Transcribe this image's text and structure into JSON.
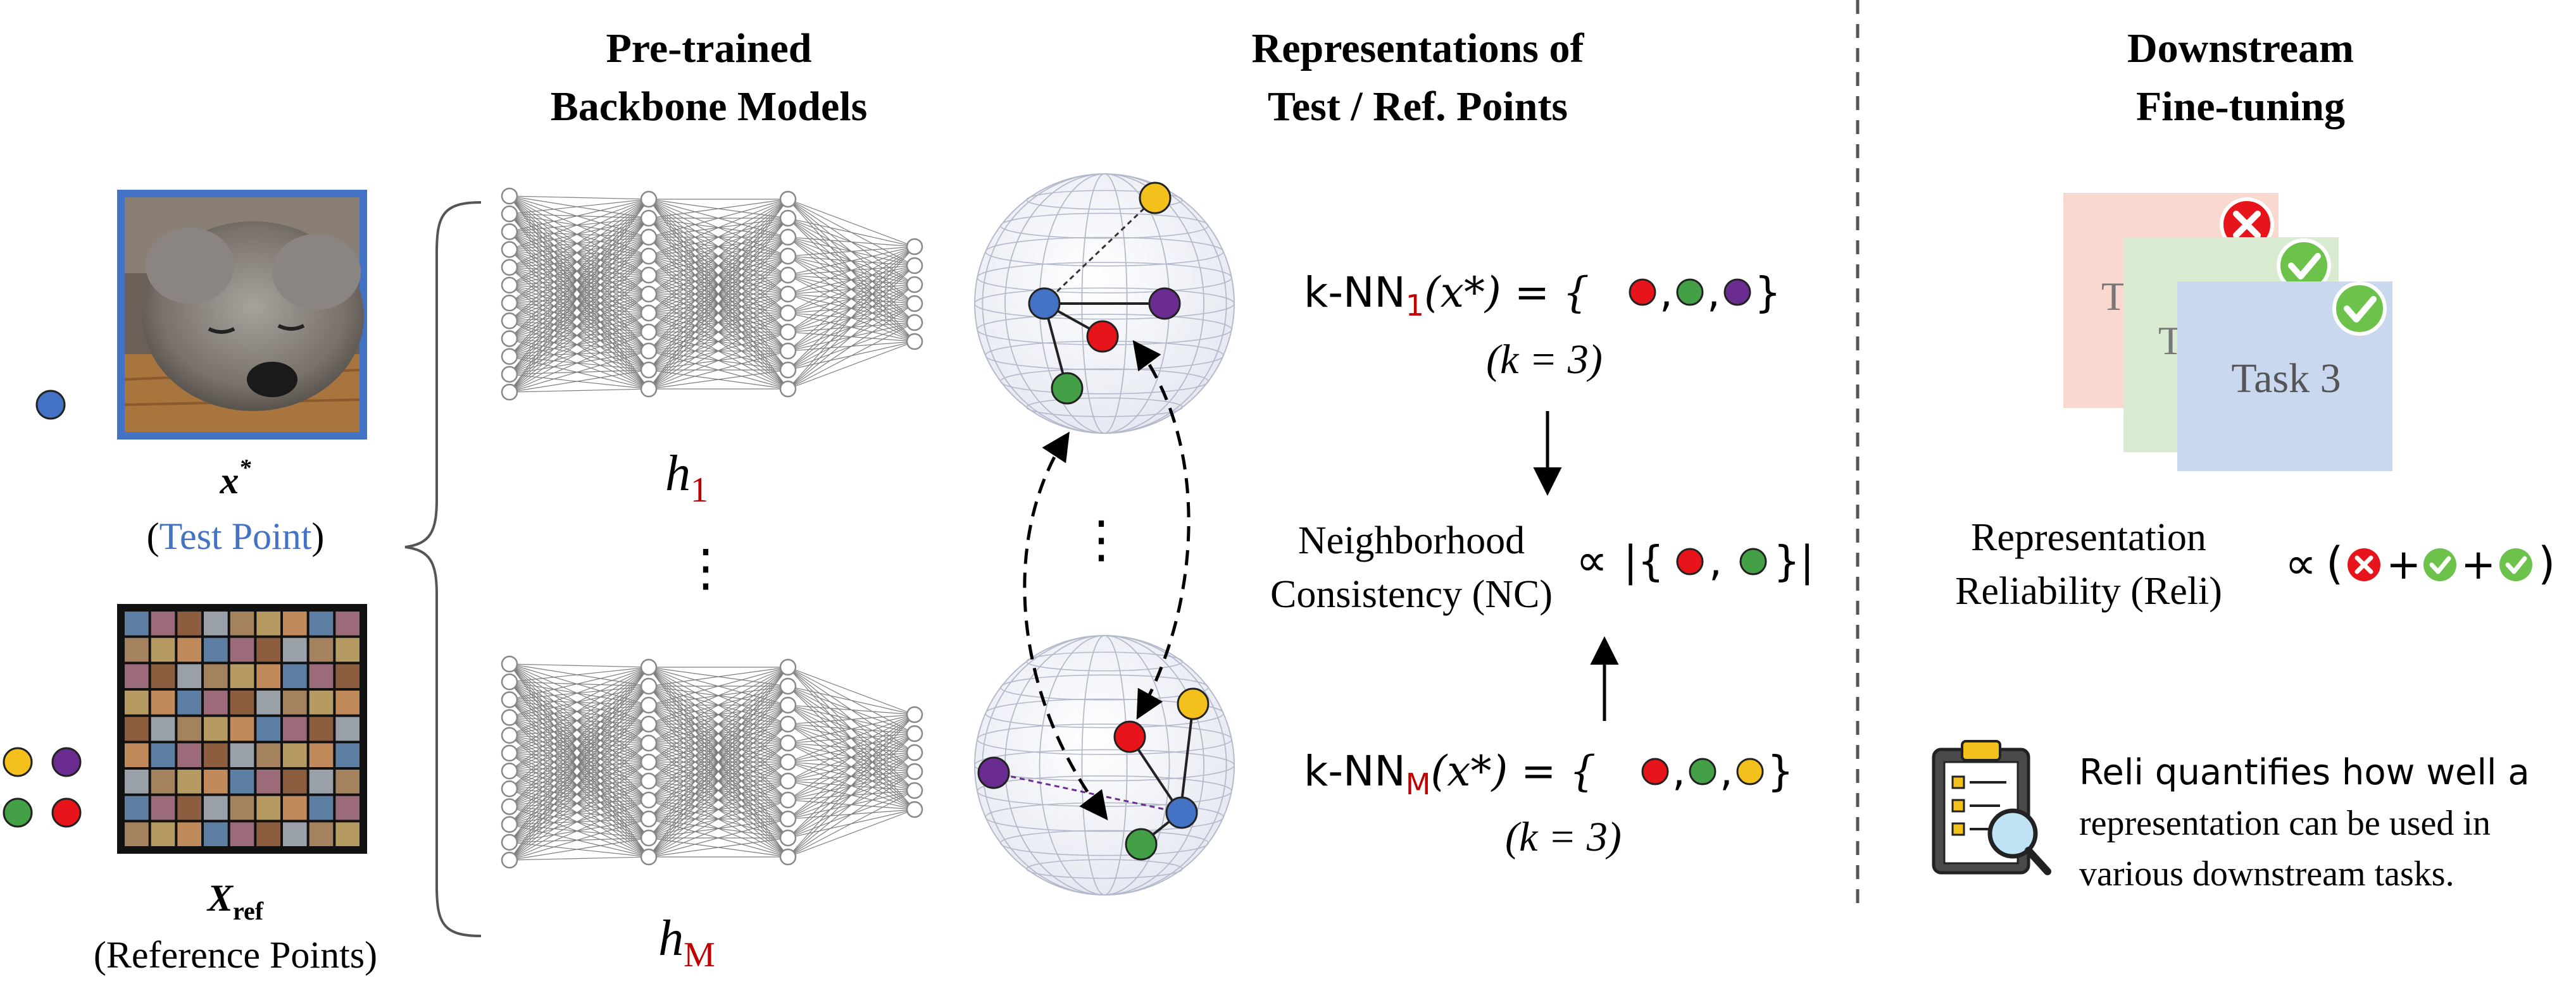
{
  "colors": {
    "blue_point": "#4472c4",
    "red_point": "#e8141c",
    "green_point": "#43a047",
    "purple_point": "#6a2c91",
    "yellow_point": "#f4c01c",
    "accent_red_text": "#c00000",
    "test_point_blue_text": "#4472c4",
    "task1_bg": "#f9d9cf",
    "task2_bg": "#d9ecd2",
    "task3_bg": "#c9d7ef",
    "check_green": "#6cc24a",
    "cross_red": "#e8141c",
    "frame_blue": "#4472c4"
  },
  "headers": {
    "backbone": [
      "Pre-trained",
      "Backbone Models"
    ],
    "representations": [
      "Representations of",
      "Test / Ref. Points"
    ],
    "downstream": [
      "Downstream",
      "Fine-tuning"
    ]
  },
  "inputs": {
    "test_symbol": "x",
    "test_symbol_sup": "*",
    "test_caption_open": "(",
    "test_caption_text": "Test Point",
    "test_caption_close": ")",
    "ref_symbol": "X",
    "ref_symbol_sub": "ref",
    "ref_caption": "(Reference Points)"
  },
  "models": {
    "h1_base": "h",
    "h1_sub": "1",
    "dots": "⋮",
    "hM_base": "h",
    "hM_sub": "M",
    "sphere_dots": "⋮"
  },
  "knn": {
    "top_prefix": "k-NN",
    "top_sub": "1",
    "top_arg": "(x*) = {",
    "top_close": "}",
    "top_k": "(k = 3)",
    "bottom_prefix": "k-NN",
    "bottom_sub": "M",
    "bottom_arg": "(x*) = {",
    "bottom_close": "}",
    "bottom_k": "(k = 3)",
    "separator": ","
  },
  "nc": {
    "label_line1": "Neighborhood",
    "label_line2": "Consistency (NC)",
    "proportional": "∝",
    "set_open": "|{",
    "set_close": "}|",
    "separator": ","
  },
  "tasks": {
    "task1_label": "T",
    "task2_label": "T",
    "task3_label": "Task 3"
  },
  "reli": {
    "label_line1": "Representation",
    "label_line2": "Reliability (Reli)",
    "proportional": "∝",
    "paren_open": "(",
    "plus": "+",
    "paren_close": ")"
  },
  "note": {
    "line1": "Reli quantifies how well a",
    "line2": "representation can be used in",
    "line3": "various downstream tasks."
  },
  "icons": {
    "dog_photo": "dog-photo-icon",
    "image_grid": "image-grid-icon",
    "clipboard": "clipboard-magnifier-icon",
    "check": "check-icon",
    "cross": "cross-icon"
  }
}
